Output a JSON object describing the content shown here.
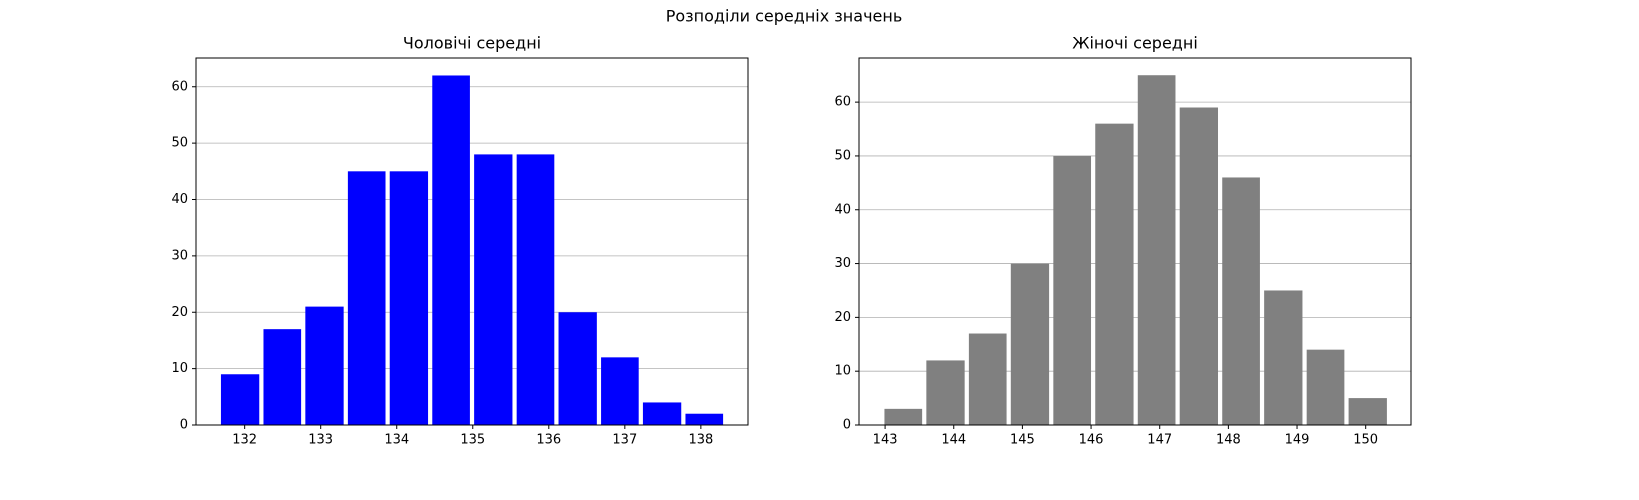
{
  "title": "Розподіли середніх значень",
  "chart_data": [
    {
      "type": "histogram",
      "title": "Чоловічі середні",
      "color": "#0000ff",
      "bins": [
        131.66,
        132.22,
        132.77,
        133.33,
        133.88,
        134.44,
        134.99,
        135.55,
        136.1,
        136.66,
        137.21,
        137.77,
        138.32
      ],
      "values": [
        9,
        17,
        21,
        45,
        45,
        62,
        48,
        48,
        20,
        12,
        4,
        2
      ],
      "xlim": [
        131.36,
        138.62
      ],
      "xticks": [
        132,
        133,
        134,
        135,
        136,
        137,
        138
      ],
      "ylim": [
        0,
        65.1
      ],
      "yticks": [
        0,
        10,
        20,
        30,
        40,
        50,
        60
      ],
      "grid": "y"
    },
    {
      "type": "histogram",
      "title": "Жіночі середні",
      "color": "#808080",
      "bins": [
        142.96,
        143.57,
        144.19,
        144.8,
        145.42,
        146.03,
        146.65,
        147.26,
        147.88,
        148.49,
        149.11,
        149.72,
        150.34
      ],
      "values": [
        3,
        12,
        17,
        30,
        50,
        56,
        65,
        59,
        46,
        25,
        14,
        5
      ],
      "xlim": [
        142.62,
        150.66
      ],
      "xticks": [
        143,
        144,
        145,
        146,
        147,
        148,
        149,
        150
      ],
      "ylim": [
        0,
        68.2
      ],
      "yticks": [
        0,
        10,
        20,
        30,
        40,
        50,
        60
      ],
      "grid": "y"
    }
  ]
}
